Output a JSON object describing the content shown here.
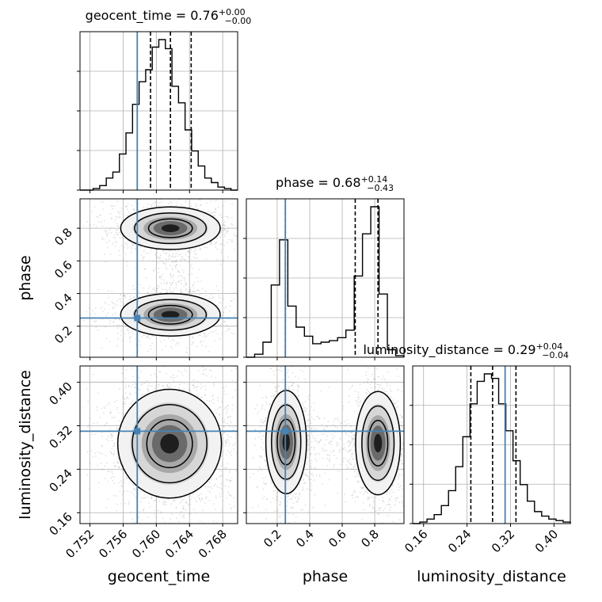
{
  "chart_data": {
    "type": "corner",
    "truth_color": "#4682b4",
    "hist_color": "#000000",
    "scatter_color": "#9a9a9a",
    "parameters": [
      {
        "name": "geocent_time",
        "xlabel": "geocent_time",
        "ylabel": "",
        "title_main": "geocent_time = 0.76",
        "title_plus": "+0.00",
        "title_minus": "−0.00",
        "range": [
          0.7508,
          0.7698
        ],
        "ticks": [
          0.752,
          0.756,
          0.76,
          0.764,
          0.768
        ],
        "tick_labels": [
          "0.752",
          "0.756",
          "0.760",
          "0.764",
          "0.768"
        ],
        "truth": 0.7577,
        "quantiles": [
          0.7593,
          0.7617,
          0.7642
        ],
        "hist_density": [
          0,
          0,
          0.01,
          0.03,
          0.08,
          0.12,
          0.24,
          0.38,
          0.57,
          0.72,
          0.8,
          0.95,
          1.0,
          0.94,
          0.69,
          0.58,
          0.4,
          0.26,
          0.16,
          0.08,
          0.05,
          0.02,
          0.01,
          0
        ]
      },
      {
        "name": "phase",
        "xlabel": "phase",
        "ylabel": "phase",
        "title_main": "phase = 0.68",
        "title_plus": "+0.14",
        "title_minus": "−0.43",
        "range": [
          0.01,
          0.98
        ],
        "ticks": [
          0.2,
          0.4,
          0.6,
          0.8
        ],
        "tick_labels": [
          "0.2",
          "0.4",
          "0.6",
          "0.8"
        ],
        "truth": 0.25,
        "quantiles": [
          0.25,
          0.68,
          0.82
        ],
        "hist_density": [
          0,
          0.02,
          0.1,
          0.48,
          0.78,
          0.34,
          0.2,
          0.14,
          0.09,
          0.1,
          0.11,
          0.13,
          0.18,
          0.54,
          0.82,
          1.0,
          0.42,
          0.05,
          0.01
        ]
      },
      {
        "name": "luminosity_distance",
        "xlabel": "luminosity_distance",
        "ylabel": "luminosity_distance",
        "title_main": "luminosity_distance = 0.29",
        "title_plus": "+0.04",
        "title_minus": "−0.04",
        "range": [
          0.14,
          0.43
        ],
        "ticks": [
          0.16,
          0.24,
          0.32,
          0.4
        ],
        "tick_labels": [
          "0.16",
          "0.24",
          "0.32",
          "0.40"
        ],
        "truth": 0.31,
        "quantiles": [
          0.247,
          0.287,
          0.33
        ],
        "hist_density": [
          0,
          0.01,
          0.03,
          0.06,
          0.12,
          0.22,
          0.38,
          0.58,
          0.8,
          0.95,
          1.0,
          0.97,
          0.8,
          0.62,
          0.42,
          0.26,
          0.15,
          0.08,
          0.05,
          0.03,
          0.02,
          0.01
        ]
      }
    ],
    "modes_2d": {
      "1-0": [
        {
          "cx": 0.7617,
          "cy": 0.8,
          "sx": 0.0024,
          "sy": 0.052,
          "w": 0.55
        },
        {
          "cx": 0.7617,
          "cy": 0.27,
          "sx": 0.0024,
          "sy": 0.052,
          "w": 0.45
        }
      ],
      "2-0": [
        {
          "cx": 0.7616,
          "cy": 0.287,
          "sx": 0.0025,
          "sy": 0.04,
          "w": 1.0
        }
      ],
      "2-1": [
        {
          "cx": 0.255,
          "cy": 0.29,
          "sx": 0.05,
          "sy": 0.038,
          "w": 0.45
        },
        {
          "cx": 0.82,
          "cy": 0.288,
          "sx": 0.055,
          "sy": 0.038,
          "w": 0.55
        }
      ]
    }
  }
}
